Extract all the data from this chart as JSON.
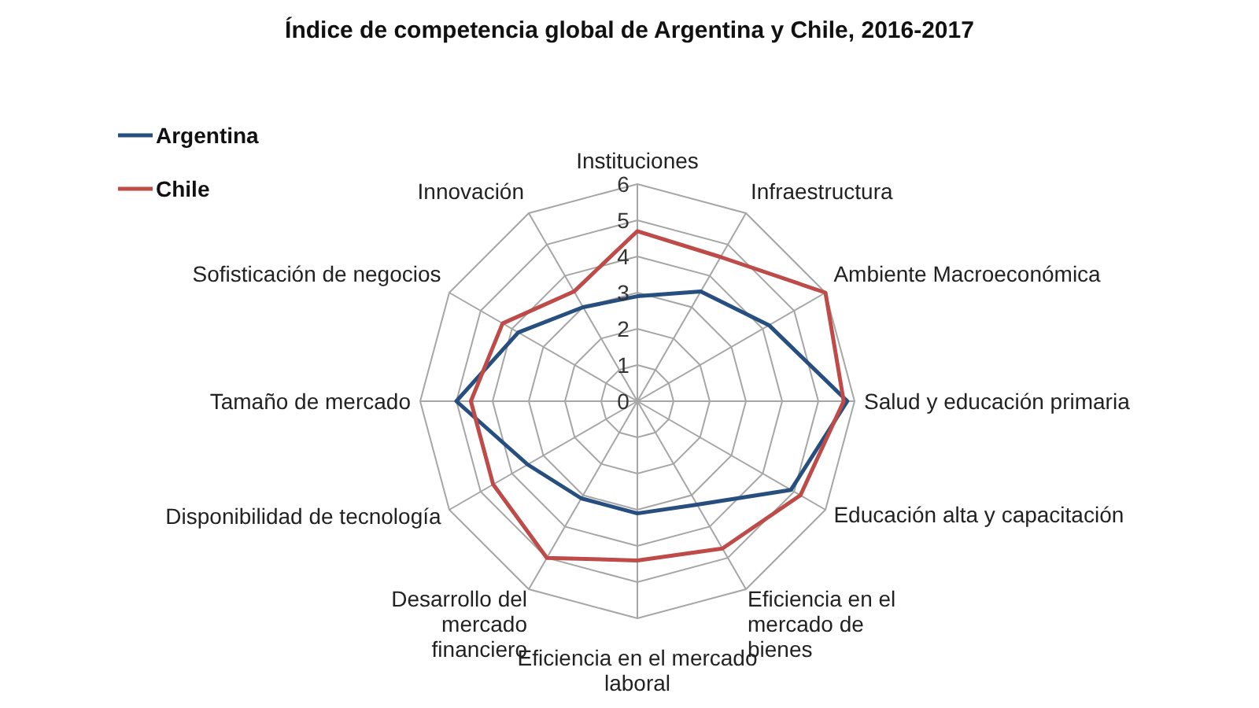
{
  "chart_data": {
    "type": "radar",
    "title": "Índice de competencia global de Argentina y Chile, 2016-2017",
    "categories": [
      "Instituciones",
      "Infraestructura",
      "Ambiente Macroeconómica",
      "Salud y educación primaria",
      "Educación alta y capacitación",
      "Eficiencia en el mercado de bienes",
      "Eficiencia en el mercado laboral",
      "Desarrollo del mercado financiero",
      "Disponibilidad de tecnología",
      "Tamaño de mercado",
      "Sofisticación de negocios",
      "Innovación"
    ],
    "series": [
      {
        "name": "Argentina",
        "color": "#264f7f",
        "values": [
          2.9,
          3.5,
          4.2,
          5.8,
          4.9,
          3.3,
          3.1,
          3.1,
          3.5,
          5.0,
          3.8,
          3.0
        ]
      },
      {
        "name": "Chile",
        "color": "#be4b48",
        "values": [
          4.7,
          4.6,
          6.0,
          5.7,
          5.2,
          4.7,
          4.4,
          5.0,
          4.6,
          4.6,
          4.3,
          3.5
        ]
      }
    ],
    "ylim": [
      0,
      6
    ],
    "yticks": [
      0,
      1,
      2,
      3,
      4,
      5,
      6
    ],
    "grid": true,
    "legend": "top left",
    "marker": "none"
  }
}
